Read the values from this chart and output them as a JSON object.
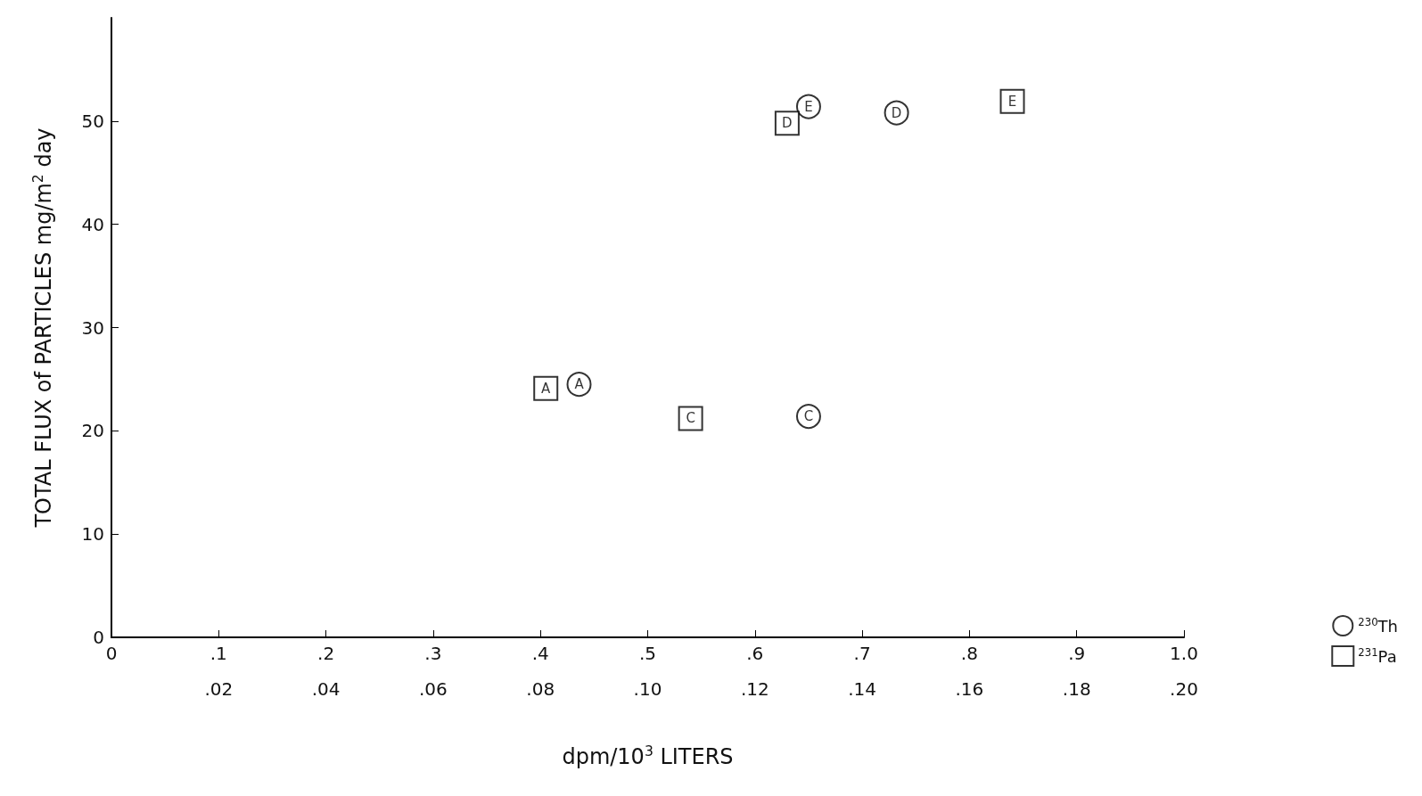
{
  "chart_data": {
    "type": "scatter",
    "xlabel": "dpm/10$^{3}$ LITERS",
    "ylabel": "TOTAL FLUX of PARTICLES mg/m$^{2}$ day",
    "xlim": [
      0,
      1.0
    ],
    "xticks": [
      {
        "value": 0,
        "label": "0"
      },
      {
        "value": 0.1,
        "label": ".1"
      },
      {
        "value": 0.2,
        "label": ".2"
      },
      {
        "value": 0.3,
        "label": ".3"
      },
      {
        "value": 0.4,
        "label": ".4"
      },
      {
        "value": 0.5,
        "label": ".5"
      },
      {
        "value": 0.6,
        "label": ".6"
      },
      {
        "value": 0.7,
        "label": ".7"
      },
      {
        "value": 0.8,
        "label": ".8"
      },
      {
        "value": 0.9,
        "label": ".9"
      },
      {
        "value": 1.0,
        "label": "1.0"
      }
    ],
    "x2lim": [
      0,
      0.2
    ],
    "x2ticks": [
      {
        "value": 0.02,
        "label": ".02"
      },
      {
        "value": 0.04,
        "label": ".04"
      },
      {
        "value": 0.06,
        "label": ".06"
      },
      {
        "value": 0.08,
        "label": ".08"
      },
      {
        "value": 0.1,
        "label": ".10"
      },
      {
        "value": 0.12,
        "label": ".12"
      },
      {
        "value": 0.14,
        "label": ".14"
      },
      {
        "value": 0.16,
        "label": ".16"
      },
      {
        "value": 0.18,
        "label": ".18"
      },
      {
        "value": 0.2,
        "label": ".20"
      }
    ],
    "ylim": [
      0,
      60
    ],
    "yticks": [
      0,
      10,
      20,
      30,
      40,
      50
    ],
    "series": [
      {
        "name": "$^{230}$Th",
        "color": "#000000",
        "marker": "circle",
        "x": [
          0.436,
          0.65,
          0.732,
          0.65
        ],
        "values": [
          24.5,
          21.4,
          50.8,
          51.4
        ]
      },
      {
        "name": "$^{231}$Pa",
        "color": "#000000",
        "marker": "square",
        "axis": "x2",
        "x": [
          0.081,
          0.108,
          0.126,
          0.168
        ],
        "values": [
          24.1,
          21.2,
          49.8,
          51.9
        ]
      }
    ],
    "annotations": [
      {
        "text": "A",
        "x": 0.436,
        "y": 24.5
      },
      {
        "text": "C",
        "x": 0.65,
        "y": 21.4
      },
      {
        "text": "D",
        "x": 0.732,
        "y": 50.8
      },
      {
        "text": "E",
        "x": 0.65,
        "y": 51.4
      },
      {
        "text": "A",
        "x": 0.405,
        "y": 24.1
      },
      {
        "text": "C",
        "x": 0.54,
        "y": 21.2
      },
      {
        "text": "D",
        "x": 0.63,
        "y": 49.8
      },
      {
        "text": "E",
        "x": 0.84,
        "y": 51.9
      }
    ],
    "legend": "right",
    "grid": false
  }
}
